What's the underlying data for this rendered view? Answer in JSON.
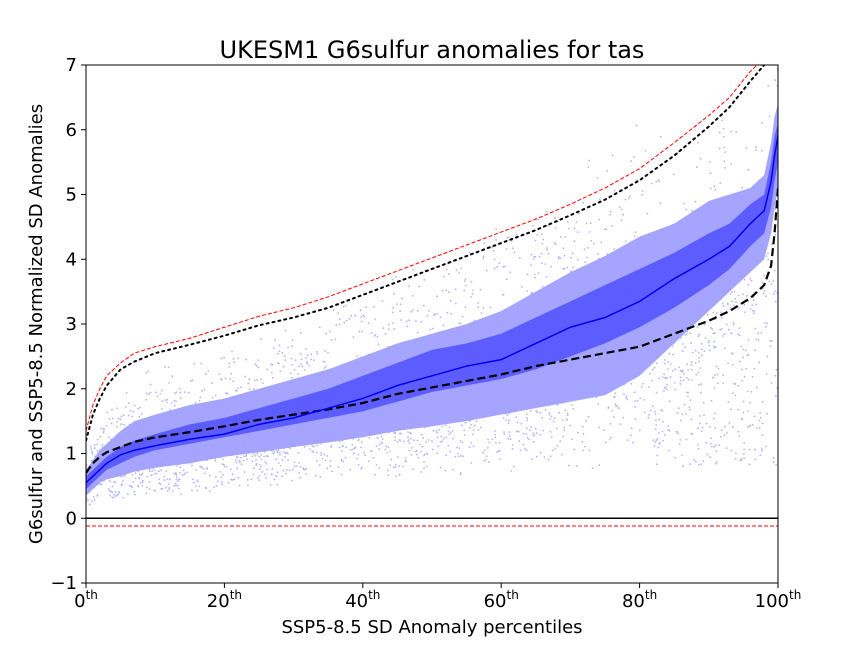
{
  "chart_data": {
    "type": "line",
    "title": "UKESM1 G6sulfur anomalies for tas",
    "xlabel": "SSP5-8.5 SD Anomaly percentiles",
    "ylabel": "G6sulfur and SSP5-8.5 Normalized SD Anomalies",
    "xlim": [
      0,
      100
    ],
    "ylim": [
      -1,
      7
    ],
    "x_ticks": [
      {
        "value": 0,
        "base": "0",
        "sup": "th"
      },
      {
        "value": 20,
        "base": "20",
        "sup": "th"
      },
      {
        "value": 40,
        "base": "40",
        "sup": "th"
      },
      {
        "value": 60,
        "base": "60",
        "sup": "th"
      },
      {
        "value": 80,
        "base": "80",
        "sup": "th"
      },
      {
        "value": 100,
        "base": "100",
        "sup": "th"
      }
    ],
    "y_ticks": [
      -1,
      0,
      1,
      2,
      3,
      4,
      5,
      6,
      7
    ],
    "grid": false,
    "colors": {
      "median": "#0000ee",
      "inner_band": "#5555ff",
      "outer_band": "#a0a0ff",
      "scatter": "#b4b4f4",
      "ssp_median": "#000000",
      "ssp_upper": "#000000",
      "ssp_max": "#ff0000",
      "zero_line": "#000000"
    },
    "x": [
      0,
      1,
      2,
      3,
      5,
      7,
      10,
      15,
      20,
      25,
      30,
      35,
      40,
      45,
      50,
      55,
      60,
      65,
      70,
      75,
      80,
      85,
      90,
      93,
      96,
      98,
      99,
      99.5,
      100
    ],
    "series": [
      {
        "role": "outer-band-upper",
        "style": "fill",
        "values": [
          0.75,
          0.9,
          1.05,
          1.15,
          1.35,
          1.5,
          1.6,
          1.75,
          1.85,
          2.0,
          2.15,
          2.3,
          2.5,
          2.7,
          2.85,
          3.0,
          3.2,
          3.5,
          3.8,
          4.05,
          4.35,
          4.55,
          4.9,
          5.0,
          5.1,
          5.3,
          5.8,
          6.2,
          6.4
        ]
      },
      {
        "role": "outer-band-lower",
        "style": "fill",
        "values": [
          0.35,
          0.45,
          0.55,
          0.6,
          0.65,
          0.72,
          0.78,
          0.85,
          0.95,
          1.02,
          1.1,
          1.17,
          1.25,
          1.35,
          1.42,
          1.5,
          1.6,
          1.7,
          1.8,
          1.9,
          2.2,
          2.7,
          3.2,
          3.5,
          3.8,
          4.0,
          4.4,
          4.8,
          5.1
        ]
      },
      {
        "role": "inner-band-upper",
        "style": "fill",
        "values": [
          0.65,
          0.75,
          0.85,
          0.95,
          1.1,
          1.2,
          1.3,
          1.45,
          1.55,
          1.7,
          1.85,
          2.0,
          2.2,
          2.4,
          2.6,
          2.7,
          2.85,
          3.1,
          3.35,
          3.6,
          3.85,
          4.1,
          4.4,
          4.55,
          4.85,
          5.0,
          5.5,
          5.9,
          6.1
        ]
      },
      {
        "role": "inner-band-lower",
        "style": "fill",
        "values": [
          0.45,
          0.55,
          0.65,
          0.75,
          0.85,
          0.95,
          1.05,
          1.15,
          1.25,
          1.35,
          1.45,
          1.55,
          1.65,
          1.8,
          1.95,
          2.05,
          2.15,
          2.3,
          2.5,
          2.7,
          2.95,
          3.25,
          3.6,
          3.85,
          4.2,
          4.4,
          4.8,
          5.2,
          5.5
        ]
      },
      {
        "role": "g6-median",
        "style": "solid",
        "values": [
          0.55,
          0.65,
          0.75,
          0.85,
          0.98,
          1.05,
          1.12,
          1.22,
          1.3,
          1.45,
          1.55,
          1.7,
          1.85,
          2.05,
          2.2,
          2.35,
          2.45,
          2.7,
          2.95,
          3.1,
          3.35,
          3.7,
          4.0,
          4.2,
          4.55,
          4.75,
          5.2,
          5.6,
          5.9
        ]
      },
      {
        "role": "ssp-median",
        "style": "dashed",
        "values": [
          0.7,
          0.85,
          0.95,
          1.02,
          1.1,
          1.18,
          1.25,
          1.33,
          1.42,
          1.52,
          1.6,
          1.68,
          1.78,
          1.92,
          2.02,
          2.12,
          2.22,
          2.35,
          2.45,
          2.55,
          2.65,
          2.85,
          3.05,
          3.2,
          3.4,
          3.6,
          3.9,
          4.4,
          5.1
        ]
      },
      {
        "role": "ssp-upper",
        "style": "dotted",
        "values": [
          1.2,
          1.6,
          1.85,
          2.05,
          2.3,
          2.42,
          2.55,
          2.68,
          2.82,
          2.98,
          3.1,
          3.25,
          3.45,
          3.65,
          3.85,
          4.05,
          4.25,
          4.45,
          4.68,
          4.92,
          5.22,
          5.6,
          6.05,
          6.35,
          6.75,
          7.0,
          7.1,
          7.2,
          7.3
        ]
      },
      {
        "role": "ssp-max",
        "style": "dashed-thin",
        "values": [
          1.35,
          1.75,
          2.0,
          2.2,
          2.4,
          2.55,
          2.65,
          2.78,
          2.95,
          3.12,
          3.25,
          3.42,
          3.62,
          3.82,
          4.02,
          4.22,
          4.42,
          4.62,
          4.85,
          5.1,
          5.4,
          5.8,
          6.22,
          6.5,
          6.9,
          7.1,
          7.2,
          7.3,
          7.4
        ]
      }
    ],
    "hlines": [
      {
        "role": "zero-line",
        "y": 0,
        "style": "solid"
      },
      {
        "role": "ssp-min",
        "y": -0.12,
        "style": "dashed-thin"
      }
    ],
    "scatter": {
      "count": 2600,
      "description_free": true
    }
  }
}
